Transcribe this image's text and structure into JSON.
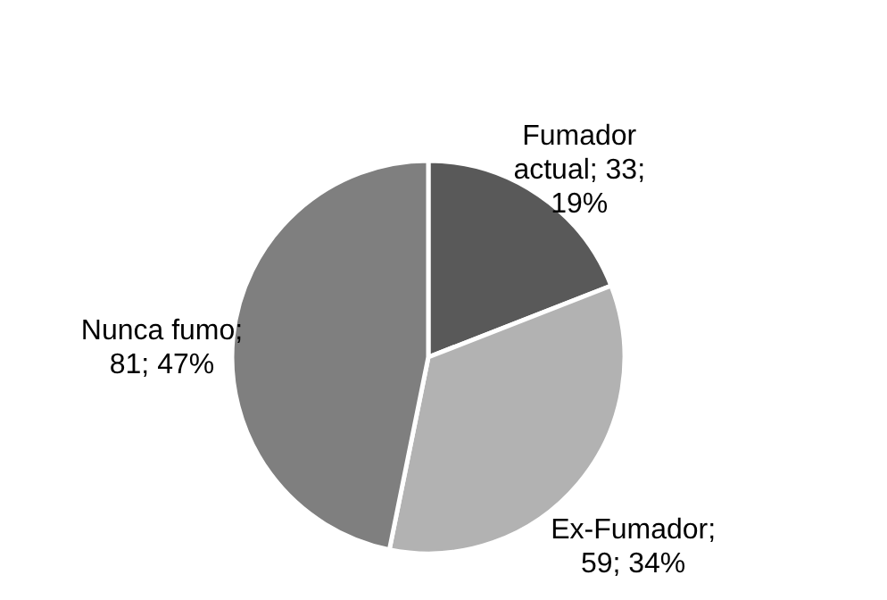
{
  "chart_data": {
    "type": "pie",
    "categories": [
      "Fumador actual",
      "Ex-Fumador",
      "Nunca fumo"
    ],
    "values": [
      33,
      59,
      81
    ],
    "colors": [
      "#595959",
      "#b2b2b2",
      "#7f7f7f"
    ],
    "value_labels": [
      "; 33; 19%",
      "; 59; 34%",
      "; 81; 47%"
    ]
  }
}
